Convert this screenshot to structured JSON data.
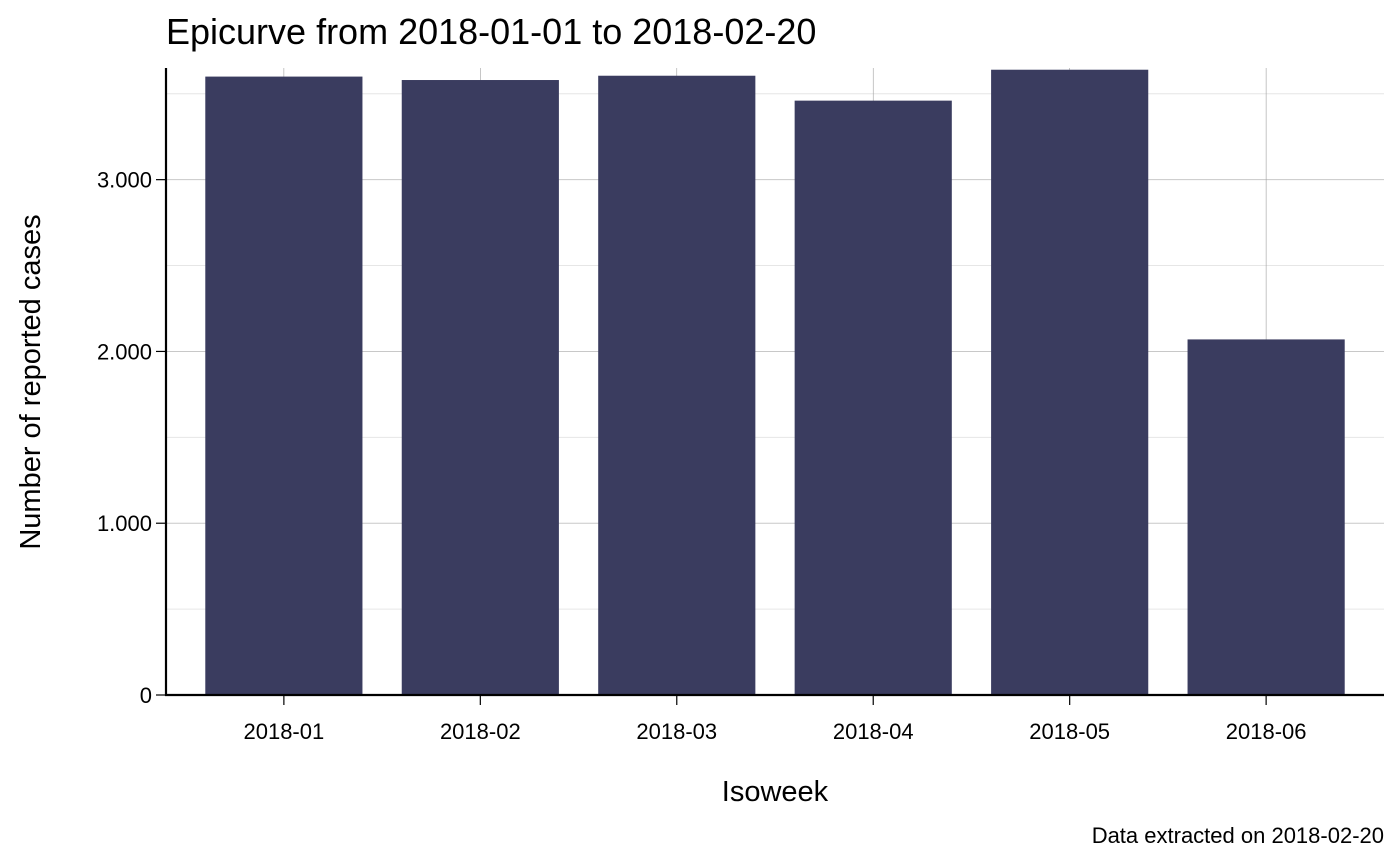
{
  "chart_data": {
    "type": "bar",
    "title": "Epicurve from 2018-01-01 to 2018-02-20",
    "xlabel": "Isoweek",
    "ylabel": "Number of reported cases",
    "caption": "Data extracted on 2018-02-20",
    "categories": [
      "2018-01",
      "2018-02",
      "2018-03",
      "2018-04",
      "2018-05",
      "2018-06"
    ],
    "values": [
      3600,
      3580,
      3605,
      3460,
      3640,
      2070
    ],
    "ylim": [
      0,
      3650
    ],
    "yticks": [
      0,
      1000,
      2000,
      3000
    ],
    "ytick_labels": [
      "0",
      "1.000",
      "2.000",
      "3.000"
    ],
    "grid": true,
    "bar_color": "#3a3c5f"
  }
}
